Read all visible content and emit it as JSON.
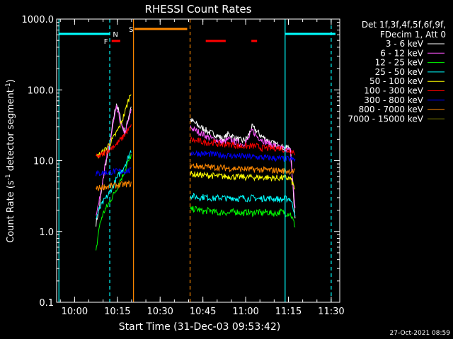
{
  "chart_data": {
    "type": "line",
    "title": "RHESSI Count Rates",
    "xlabel": "Start Time (31-Dec-03 09:53:42)",
    "ylabel_main": "Count Rate (s",
    "ylabel_sup": "-1",
    "ylabel_rest": " detector segment",
    "ylabel_sup2": "-1",
    "ylabel_end": ")",
    "yscale": "log",
    "ylim": [
      0.1,
      1000
    ],
    "xlim": [
      "09:53:42",
      "11:33:00"
    ],
    "x_ticks": [
      "10:00",
      "10:15",
      "10:30",
      "10:45",
      "11:00",
      "11:15",
      "11:30"
    ],
    "y_ticks": [
      "1000.0",
      "100.0",
      "10.0",
      "1.0",
      "0.1"
    ],
    "legend_header": [
      "Det 1f,3f,4f,5f,6f,9f,",
      "FDecim 1, Att 0"
    ],
    "series": [
      {
        "name": "3 - 6 keV",
        "color": "#ffffff",
        "segments": [
          {
            "t0": "10:07:30",
            "t1": "10:19:50",
            "values": [
              1.3,
              2.0,
              4.0,
              8.0,
              12,
              20,
              40,
              65,
              45,
              30,
              25,
              40,
              60
            ]
          },
          {
            "t0": "10:40:30",
            "t1": "11:17:20",
            "values": [
              38,
              34,
              30,
              28,
              25,
              24,
              22,
              20,
              24,
              22,
              20,
              19,
              21,
              30,
              26,
              22,
              20,
              18,
              17,
              16,
              15,
              16,
              1.5
            ]
          }
        ]
      },
      {
        "name": "6 - 12 keV",
        "color": "#ff55ff",
        "segments": [
          {
            "t0": "10:07:30",
            "t1": "10:19:50",
            "values": [
              1.8,
              2.5,
              4.5,
              8.0,
              13,
              20,
              35,
              55,
              40,
              28,
              25,
              35,
              50
            ]
          },
          {
            "t0": "10:40:30",
            "t1": "11:17:20",
            "values": [
              30,
              27,
              25,
              23,
              21,
              20,
              19,
              18,
              20,
              19,
              18,
              17,
              19,
              27,
              22,
              20,
              18,
              17,
              16,
              15,
              14,
              14,
              2.0
            ]
          }
        ]
      },
      {
        "name": "12 - 25 keV",
        "color": "#00ff00",
        "segments": [
          {
            "t0": "10:07:30",
            "t1": "10:19:50",
            "values": [
              0.5,
              1.1,
              1.6,
              2.0,
              2.3,
              2.8,
              3.3,
              4.0,
              5.0,
              6.0,
              7.5,
              9.5,
              12
            ]
          },
          {
            "t0": "10:40:30",
            "t1": "11:17:20",
            "values": [
              2.0,
              2.1,
              2.0,
              1.9,
              2.0,
              1.9,
              1.8,
              1.9,
              1.8,
              1.9,
              1.9,
              1.8,
              1.9,
              1.8,
              1.9,
              1.8,
              1.9,
              1.8,
              1.8,
              1.9,
              1.8,
              1.8,
              1.2
            ]
          }
        ]
      },
      {
        "name": "25 - 50 keV",
        "color": "#00ffff",
        "segments": [
          {
            "t0": "10:07:30",
            "t1": "10:19:50",
            "values": [
              1.5,
              2.0,
              2.4,
              2.8,
              3.2,
              3.8,
              4.5,
              5.5,
              6.5,
              7.5,
              9.0,
              11,
              14
            ]
          },
          {
            "t0": "10:40:30",
            "t1": "11:17:20",
            "values": [
              3.2,
              3.1,
              3.0,
              3.1,
              3.0,
              2.9,
              3.0,
              3.0,
              2.9,
              3.0,
              2.9,
              3.0,
              2.9,
              3.0,
              2.9,
              2.9,
              3.0,
              2.9,
              2.9,
              2.8,
              2.9,
              2.9,
              1.8
            ]
          }
        ]
      },
      {
        "name": "50 - 100 keV",
        "color": "#ffff00",
        "segments": [
          {
            "t0": "10:07:30",
            "t1": "10:19:50",
            "values": [
              11,
              12,
              13,
              14,
              16,
              18,
              21,
              25,
              30,
              38,
              50,
              70,
              95
            ]
          },
          {
            "t0": "10:40:30",
            "t1": "11:17:20",
            "values": [
              6.5,
              6.4,
              6.3,
              6.2,
              6.2,
              6.1,
              6.0,
              6.0,
              6.0,
              5.9,
              5.9,
              5.9,
              5.8,
              5.9,
              5.8,
              5.8,
              5.8,
              5.7,
              5.7,
              5.7,
              5.7,
              5.6,
              4.0
            ]
          }
        ]
      },
      {
        "name": "100 - 300 keV",
        "color": "#ff0000",
        "segments": [
          {
            "t0": "10:07:30",
            "t1": "10:19:50",
            "values": [
              11,
              11.5,
              12,
              13,
              14,
              15,
              16,
              17,
              19,
              21,
              24,
              27,
              30
            ]
          },
          {
            "t0": "10:40:30",
            "t1": "11:17:20",
            "values": [
              20,
              19,
              19,
              18,
              18,
              18,
              17,
              17,
              17,
              17,
              16,
              16,
              16,
              16,
              16,
              15,
              15,
              15,
              15,
              15,
              14,
              14,
              13
            ]
          }
        ]
      },
      {
        "name": "300 - 800 keV",
        "color": "#0000ff",
        "segments": [
          {
            "t0": "10:07:30",
            "t1": "10:19:50",
            "values": [
              6.5,
              6.6,
              6.7,
              6.8,
              6.8,
              6.9,
              7.0,
              7.0,
              7.1,
              7.0,
              7.1,
              7.2,
              7.2
            ]
          },
          {
            "t0": "10:40:30",
            "t1": "11:17:20",
            "values": [
              13,
              12.8,
              12.6,
              12.5,
              12.4,
              12.2,
              12,
              12,
              11.8,
              11.7,
              11.6,
              11.5,
              11.4,
              11.3,
              11.2,
              11.1,
              11,
              10.9,
              10.8,
              10.7,
              10.6,
              10.5,
              10.3
            ]
          }
        ]
      },
      {
        "name": "800 - 7000 keV",
        "color": "#ff8800",
        "segments": [
          {
            "t0": "10:07:30",
            "t1": "10:19:50",
            "values": [
              4.0,
              4.1,
              4.2,
              4.3,
              4.3,
              4.4,
              4.4,
              4.5,
              4.5,
              4.6,
              4.6,
              4.7,
              4.7
            ]
          },
          {
            "t0": "10:40:30",
            "t1": "11:17:20",
            "values": [
              8.5,
              8.4,
              8.3,
              8.2,
              8.1,
              8.0,
              8.0,
              7.9,
              7.8,
              7.8,
              7.7,
              7.6,
              7.6,
              7.5,
              7.5,
              7.4,
              7.4,
              7.3,
              7.3,
              7.2,
              7.2,
              7.1,
              7.0
            ]
          }
        ]
      },
      {
        "name": "7000 - 15000 keV",
        "color": "#888800",
        "segments": []
      }
    ],
    "vlines": [
      {
        "t": "09:54:30",
        "color": "#00ffff",
        "style": "solid"
      },
      {
        "t": "10:12:20",
        "color": "#00ffff",
        "style": "dashed"
      },
      {
        "t": "10:20:40",
        "color": "#ff8800",
        "style": "solid"
      },
      {
        "t": "10:40:30",
        "color": "#ff8800",
        "style": "dashed"
      },
      {
        "t": "11:13:50",
        "color": "#00ffff",
        "style": "solid"
      },
      {
        "t": "11:30:00",
        "color": "#00ffff",
        "style": "dashed"
      }
    ],
    "flag_bars": [
      {
        "label": "",
        "color": "#00ffff",
        "t0": "09:54:30",
        "t1": "10:12:20",
        "level": 1
      },
      {
        "label": "",
        "color": "#00ffff",
        "t0": "11:13:50",
        "t1": "11:31:30",
        "level": 1
      },
      {
        "label": "",
        "color": "#ff8800",
        "t0": "10:21:00",
        "t1": "10:39:30",
        "level": 0
      },
      {
        "label": "",
        "color": "#ff0000",
        "t0": "10:13:00",
        "t1": "10:16:00",
        "level": 2
      },
      {
        "label": "",
        "color": "#ff0000",
        "t0": "10:46:00",
        "t1": "10:53:00",
        "level": 2
      },
      {
        "label": "",
        "color": "#ff0000",
        "t0": "11:02:00",
        "t1": "11:04:00",
        "level": 2
      }
    ],
    "flag_labels": [
      {
        "text": "F",
        "color": "#ff0000",
        "t": "10:11:00",
        "level": 2
      },
      {
        "text": "N",
        "color": "#00ffff",
        "t": "10:14:20",
        "level": 1
      },
      {
        "text": "S",
        "color": "#ff8800",
        "t": "10:19:50",
        "level": 0
      }
    ],
    "timestamp": "27-Oct-2021 08:59"
  }
}
